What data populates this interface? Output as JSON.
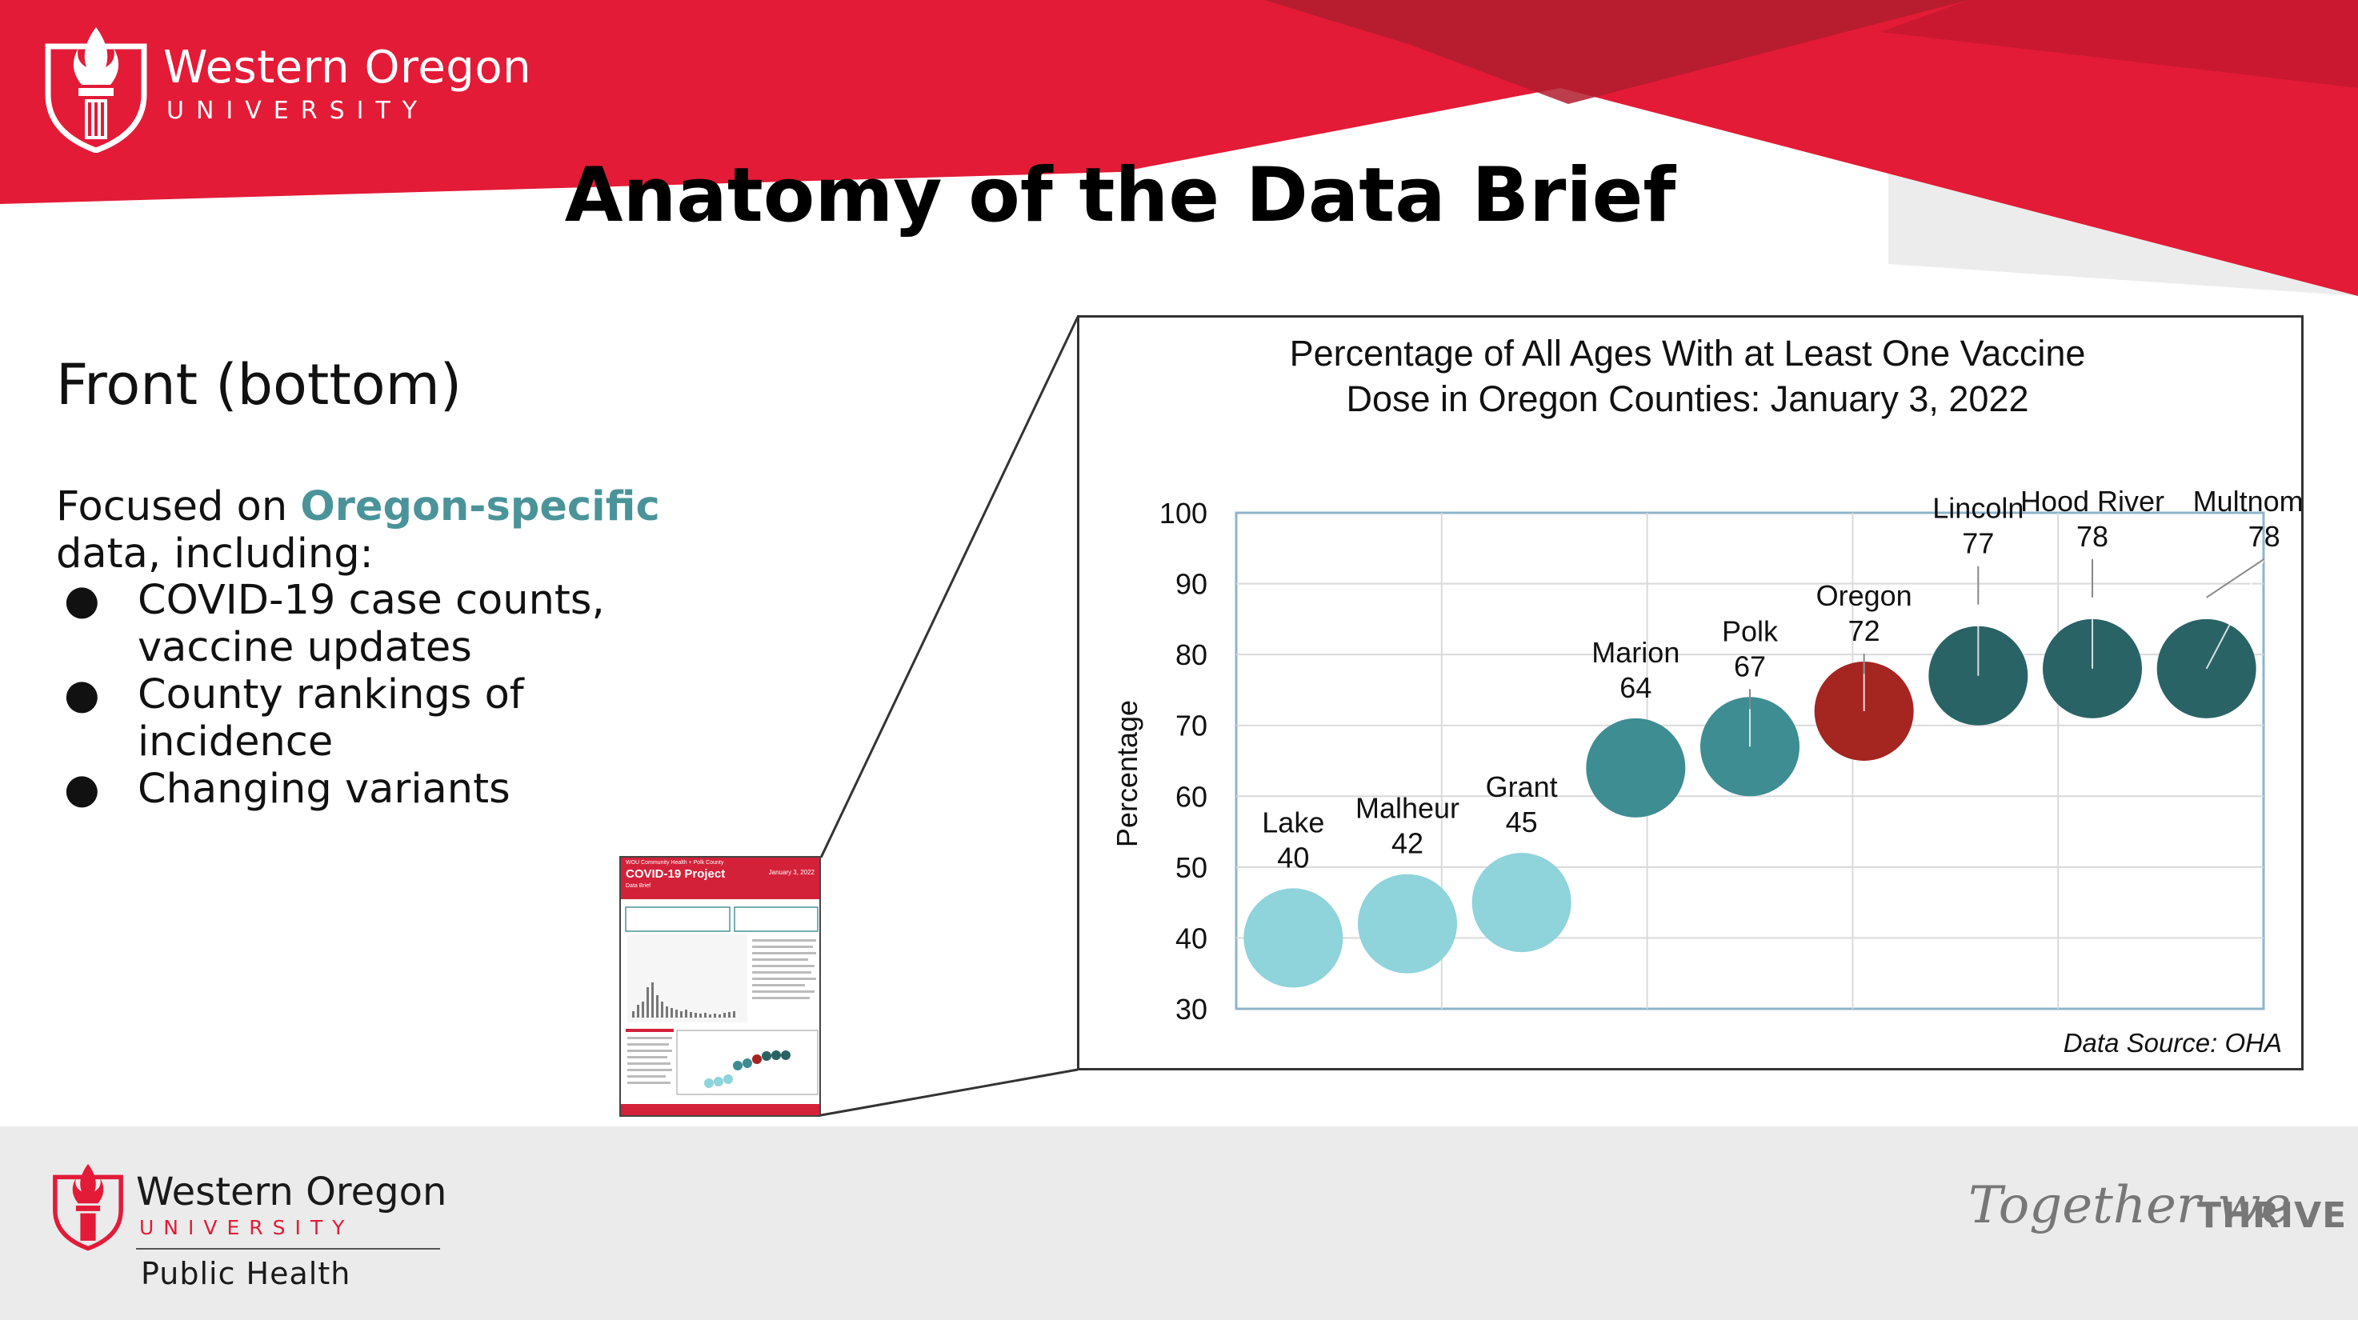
{
  "colors": {
    "brand_red": "#e31b37",
    "dark_red": "#b01c2e",
    "accent_teal": "#4a9499",
    "light_teal": "#8fd3db",
    "mid_teal": "#3d8d92",
    "dark_teal": "#2a6366",
    "oregon_red": "#a52520",
    "footer_gray": "#ebebeb"
  },
  "header": {
    "logo_name": "Western Oregon",
    "logo_university": "UNIVERSITY",
    "logo_icon": "torch-shield-icon"
  },
  "slide": {
    "title": "Anatomy of the Data Brief",
    "section_heading": "Front (bottom)",
    "intro_prefix": "Focused on ",
    "intro_accent": "Oregon-specific",
    "intro_suffix": "data, including:",
    "bullets": [
      [
        "COVID-19 case counts,",
        "vaccine updates"
      ],
      [
        "County rankings of",
        "incidence"
      ],
      [
        "Changing variants"
      ]
    ],
    "bullet_glyph": "●"
  },
  "thumbnail": {
    "header_line": "WOU Community Health + Polk County",
    "title": "COVID-19 Project",
    "subtitle": "Data Brief",
    "date": "January 3, 2022"
  },
  "chart_data": {
    "type": "bubble",
    "title_line1": "Percentage of All Ages With at Least One Vaccine",
    "title_line2": "Dose in Oregon Counties: January 3, 2022",
    "ylabel": "Percentage",
    "xlabel": "",
    "ylim": [
      30,
      100
    ],
    "yticks": [
      30,
      40,
      50,
      60,
      70,
      80,
      90,
      100
    ],
    "grid": true,
    "source": "Data Source: OHA",
    "points": [
      {
        "label": "Lake",
        "value": 40,
        "color": "#8fd3db"
      },
      {
        "label": "Malheur",
        "value": 42,
        "color": "#8fd3db"
      },
      {
        "label": "Grant",
        "value": 45,
        "color": "#8fd3db"
      },
      {
        "label": "Marion",
        "value": 64,
        "color": "#3d8d92"
      },
      {
        "label": "Polk",
        "value": 67,
        "color": "#3d8d92"
      },
      {
        "label": "Oregon",
        "value": 72,
        "color": "#a52520"
      },
      {
        "label": "Lincoln",
        "value": 77,
        "color": "#2a6366"
      },
      {
        "label": "Hood River",
        "value": 78,
        "color": "#2a6366"
      },
      {
        "label": "Multnomah",
        "value": 78,
        "color": "#2a6366"
      }
    ]
  },
  "footer": {
    "logo_name": "Western Oregon",
    "logo_university": "UNIVERSITY",
    "department": "Public Health",
    "tagline_script": "Together we",
    "tagline_bold": "THRIVE"
  }
}
